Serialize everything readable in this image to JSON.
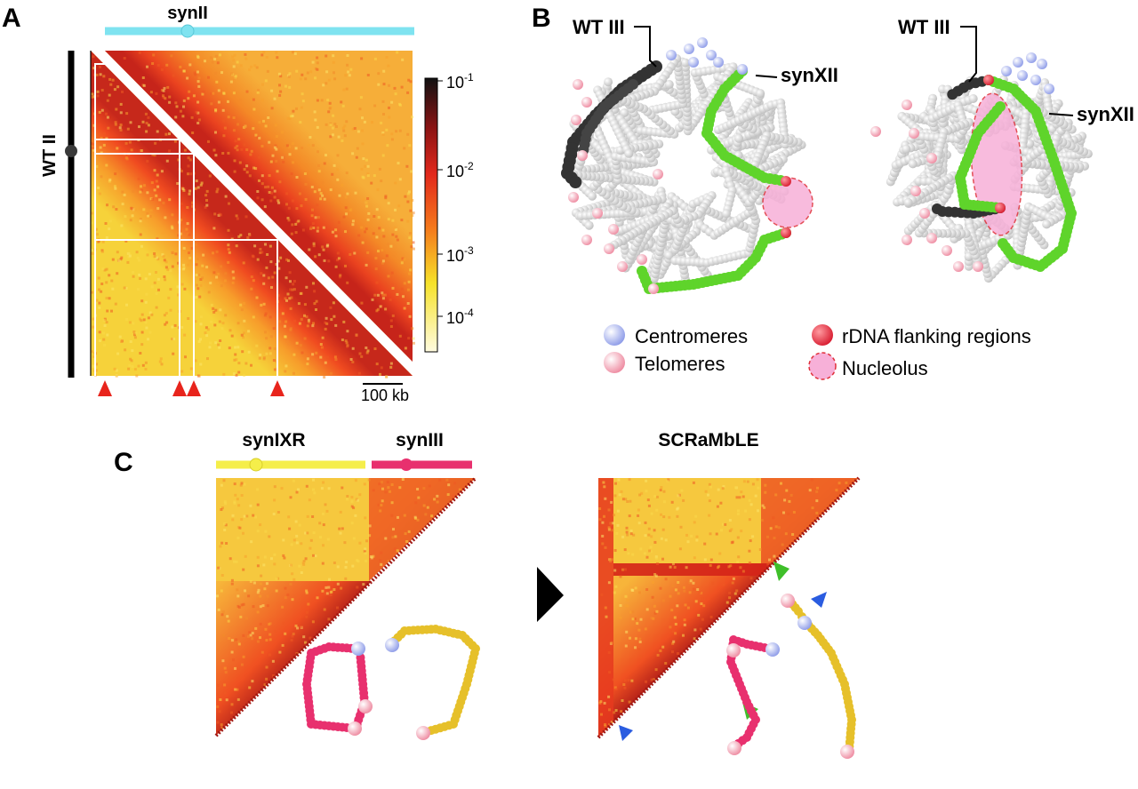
{
  "panels": {
    "a": {
      "letter": "A",
      "top_chrom": "synII",
      "side_chrom": "WT II",
      "scale_bar": "100 kb",
      "colorbar_ticks": [
        "10",
        "10",
        "10",
        "10"
      ],
      "colorbar_exps": [
        "-1",
        "-2",
        "-3",
        "-4"
      ],
      "colors": {
        "top_bar": "#7fe3f0",
        "side_bar": "#000000"
      }
    },
    "b": {
      "letter": "B",
      "labels": {
        "wt": "WT III",
        "syn": "synXII"
      },
      "legend": {
        "centromeres": "Centromeres",
        "telomeres": "Telomeres",
        "rdna": "rDNA flanking regions",
        "nucleolus": "Nucleolus"
      },
      "colors": {
        "centromere": "#a9b4f0",
        "telomere": "#f3a6b6",
        "rdna": "#e8364a",
        "nucleolus": "#f7b0d8",
        "syn": "#5fd42b",
        "wt": "#333333"
      }
    },
    "c": {
      "letter": "C",
      "chrom1": "synIXR",
      "chrom2": "synIII",
      "right_title": "SCRaMbLE",
      "colors": {
        "chrom1": "#f5ee4a",
        "chrom2": "#e8306e"
      }
    }
  }
}
